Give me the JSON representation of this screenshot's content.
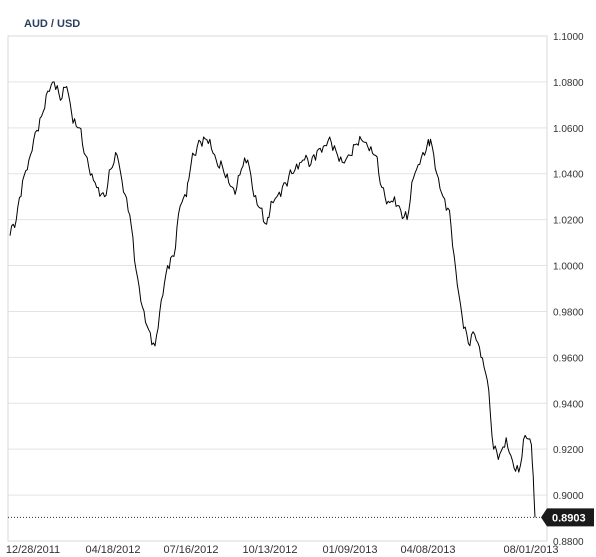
{
  "chart_data": {
    "type": "line",
    "title": "AUD / USD",
    "xlabel": "",
    "ylabel": "",
    "ylim": [
      0.88,
      1.1
    ],
    "y_ticks": [
      "1.1000",
      "1.0800",
      "1.0600",
      "1.0400",
      "1.0200",
      "1.0000",
      "0.9800",
      "0.9600",
      "0.9400",
      "0.9200",
      "0.9000",
      "0.8800"
    ],
    "x_tick_labels": [
      "12/28/2011",
      "04/18/2012",
      "07/16/2012",
      "10/13/2012",
      "01/09/2013",
      "04/08/2013",
      "08/01/2013"
    ],
    "grid": true,
    "last_value": 0.8903,
    "last_value_label": "0.8903",
    "series": [
      {
        "color": "#000000",
        "x": [
          "2011-12-28",
          "2012-01-04",
          "2012-01-11",
          "2012-01-18",
          "2012-01-25",
          "2012-02-01",
          "2012-02-08",
          "2012-02-15",
          "2012-02-22",
          "2012-02-29",
          "2012-03-07",
          "2012-03-14",
          "2012-03-21",
          "2012-03-28",
          "2012-04-04",
          "2012-04-11",
          "2012-04-18",
          "2012-04-25",
          "2012-05-02",
          "2012-05-09",
          "2012-05-16",
          "2012-05-23",
          "2012-05-30",
          "2012-06-06",
          "2012-06-13",
          "2012-06-20",
          "2012-06-27",
          "2012-07-04",
          "2012-07-11",
          "2012-07-16",
          "2012-07-23",
          "2012-07-30",
          "2012-08-06",
          "2012-08-13",
          "2012-08-20",
          "2012-08-27",
          "2012-09-03",
          "2012-09-10",
          "2012-09-17",
          "2012-09-24",
          "2012-10-01",
          "2012-10-08",
          "2012-10-13",
          "2012-10-22",
          "2012-10-29",
          "2012-11-05",
          "2012-11-12",
          "2012-11-19",
          "2012-11-26",
          "2012-12-03",
          "2012-12-10",
          "2012-12-17",
          "2012-12-24",
          "2012-12-31",
          "2013-01-09",
          "2013-01-16",
          "2013-01-23",
          "2013-01-30",
          "2013-02-06",
          "2013-02-13",
          "2013-02-20",
          "2013-02-27",
          "2013-03-06",
          "2013-03-13",
          "2013-03-20",
          "2013-03-27",
          "2013-04-03",
          "2013-04-08",
          "2013-04-15",
          "2013-04-22",
          "2013-04-29",
          "2013-05-06",
          "2013-05-13",
          "2013-05-20",
          "2013-05-27",
          "2013-06-03",
          "2013-06-10",
          "2013-06-17",
          "2013-06-24",
          "2013-07-01",
          "2013-07-08",
          "2013-07-15",
          "2013-07-22",
          "2013-07-29",
          "2013-08-02"
        ],
        "values": [
          1.013,
          1.02,
          1.037,
          1.046,
          1.058,
          1.065,
          1.076,
          1.08,
          1.072,
          1.078,
          1.062,
          1.06,
          1.048,
          1.04,
          1.034,
          1.03,
          1.042,
          1.048,
          1.032,
          1.022,
          0.998,
          0.982,
          0.972,
          0.965,
          0.985,
          1.0,
          1.004,
          1.026,
          1.03,
          1.044,
          1.052,
          1.056,
          1.055,
          1.046,
          1.043,
          1.036,
          1.031,
          1.042,
          1.046,
          1.03,
          1.025,
          1.018,
          1.028,
          1.032,
          1.036,
          1.04,
          1.042,
          1.046,
          1.044,
          1.05,
          1.052,
          1.056,
          1.05,
          1.045,
          1.048,
          1.053,
          1.054,
          1.05,
          1.048,
          1.034,
          1.028,
          1.03,
          1.024,
          1.02,
          1.038,
          1.044,
          1.05,
          1.055,
          1.04,
          1.03,
          1.024,
          0.998,
          0.978,
          0.966,
          0.97,
          0.96,
          0.95,
          0.92,
          0.918,
          0.925,
          0.915,
          0.91,
          0.926,
          0.922,
          0.8903
        ]
      }
    ]
  }
}
